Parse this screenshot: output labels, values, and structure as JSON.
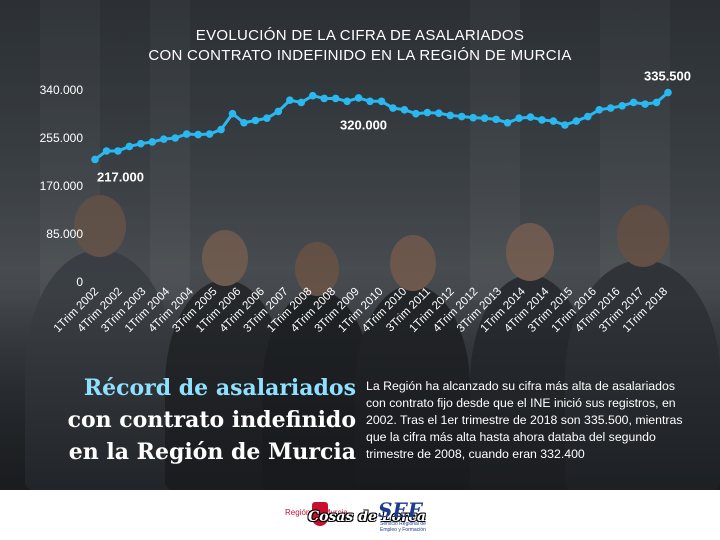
{
  "chart_data": {
    "type": "line",
    "title_lines": [
      "EVOLUCIÓN DE LA CIFRA DE ASALARIADOS",
      "CON CONTRATO INDEFINIDO EN LA REGIÓN DE MURCIA"
    ],
    "xlabel": "",
    "ylabel": "",
    "ylim": [
      0,
      340000
    ],
    "y_ticks": [
      "340.000",
      "255.000",
      "170.000",
      "85.000",
      "0"
    ],
    "y_tick_values": [
      340000,
      255000,
      170000,
      85000,
      0
    ],
    "x_tick_labels": [
      "1Trim 2002",
      "4Trim 2002",
      "3Trim 2003",
      "1Trim 2004",
      "4Trim 2004",
      "3Trim 2005",
      "1Trim 2006",
      "4Trim 2006",
      "3Trim 2007",
      "1Trim 2008",
      "4Trim 2008",
      "3Trim 2009",
      "1Trim 2010",
      "4Trim 2010",
      "3Trim 2011",
      "1Trim 2012",
      "4Trim 2012",
      "3Trim 2013",
      "1Trim 2014",
      "4Trim 2014",
      "3Trim 2015",
      "1Trim 2016",
      "4Trim 2016",
      "3Trim 2017",
      "1Trim 2018"
    ],
    "series": [
      {
        "color": "#2ab8f0",
        "values": [
          217000,
          232000,
          232000,
          240000,
          245000,
          248000,
          253000,
          255000,
          262000,
          261000,
          262000,
          270000,
          298000,
          282000,
          286000,
          290000,
          302000,
          322000,
          318000,
          330000,
          325000,
          325000,
          320000,
          326000,
          320000,
          320000,
          308000,
          305000,
          298000,
          300000,
          299000,
          295000,
          293000,
          291000,
          290000,
          288000,
          282000,
          290000,
          292000,
          287000,
          285000,
          278000,
          285000,
          293000,
          305000,
          308000,
          312000,
          318000,
          315000,
          318000,
          335500
        ]
      }
    ],
    "data_labels": [
      {
        "text": "217.000",
        "index": 0
      },
      {
        "text": "320.000",
        "index": 24
      },
      {
        "text": "335.500",
        "index": 50
      }
    ]
  },
  "record": {
    "heading_line1": "Récord de asalariados",
    "heading_line2": "con contrato indefinido",
    "heading_line3": "en la Región de Murcia",
    "body": "La Región ha alcanzado su cifra más alta de asalariados con contrato fijo desde que el INE inició sus registros, en 2002. Tras el 1er trimestre de 2018 son 335.500, mientras que la cifra más alta hasta ahora databa del segundo trimestre de 2008, cuando eran 332.400"
  },
  "footer": {
    "region_text": "Región de Murcia",
    "watermark": "Cosas de Lorca",
    "sef_mark": "SEF",
    "sef_sub": "Servicio Regional de Empleo y Formación"
  },
  "colors": {
    "line": "#2ab8f0",
    "heading_accent": "#8fe0ff",
    "text": "#ffffff"
  }
}
